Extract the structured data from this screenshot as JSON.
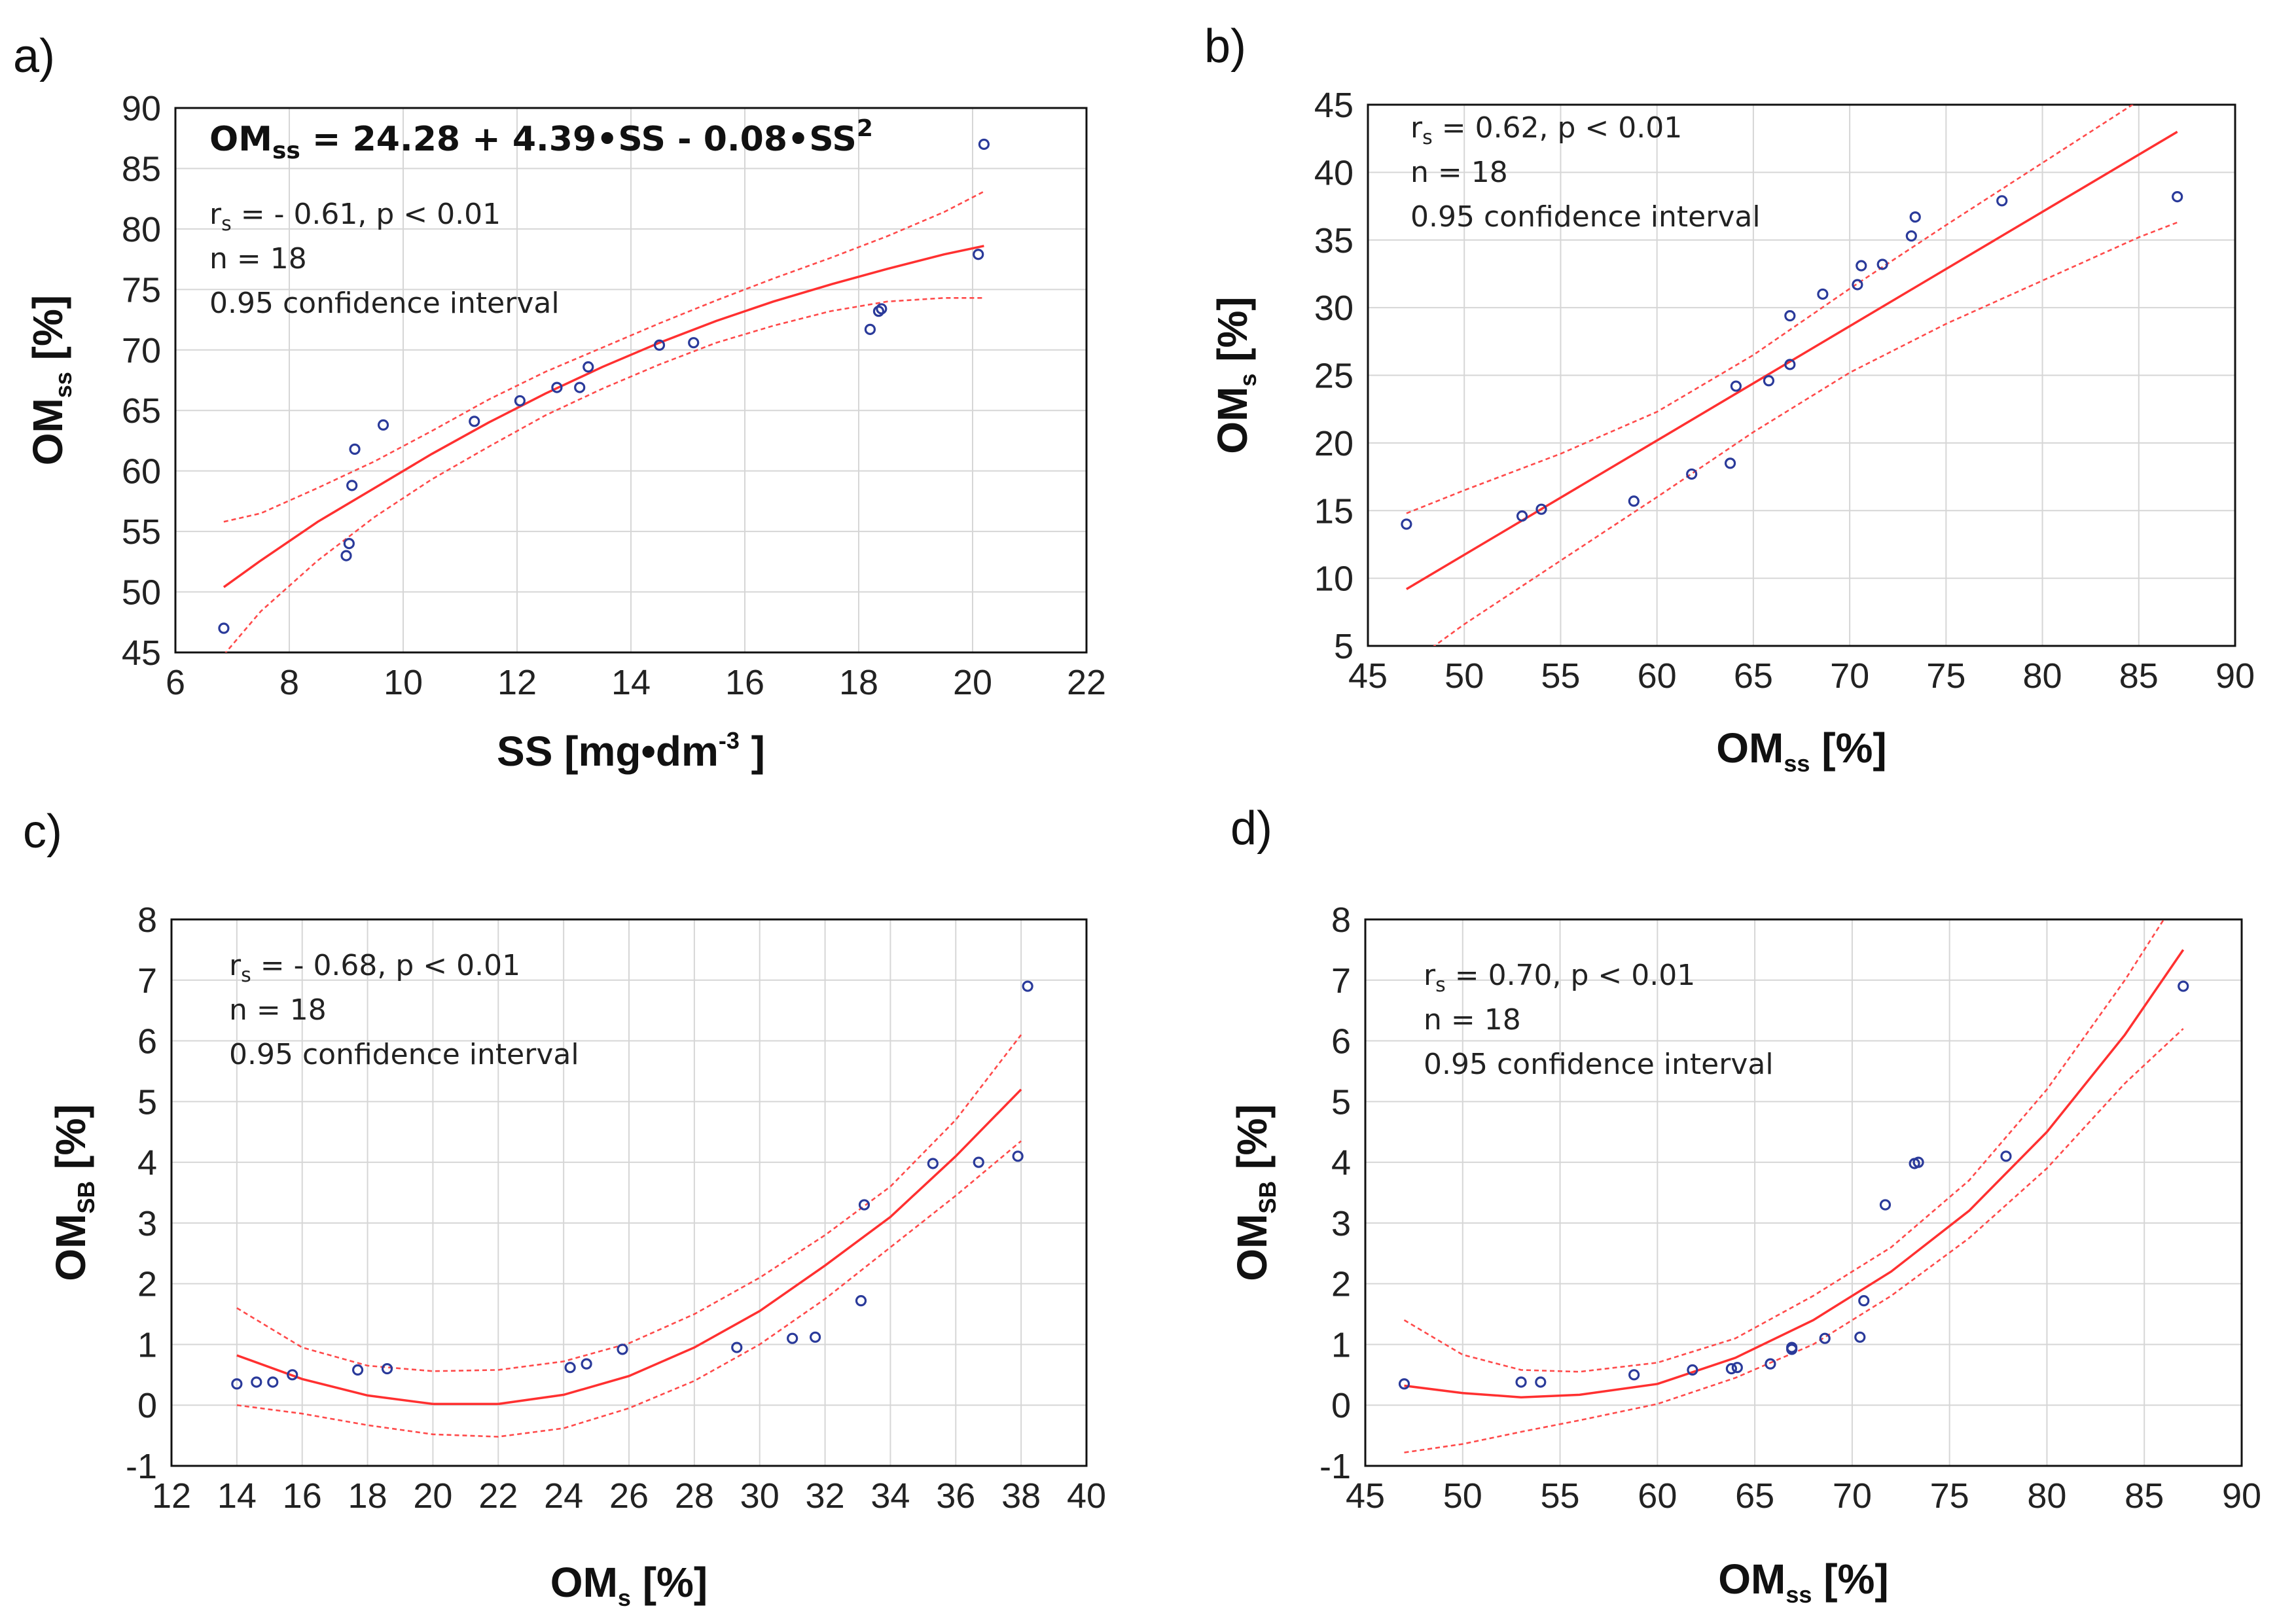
{
  "chart_data": [
    {
      "id": "a",
      "type": "scatter",
      "panel_label": "a)",
      "equation": {
        "lhs": "OM",
        "lhs_sub": "ss",
        "rhs": " = 24.28 + 4.39•SS - 0.08•SS",
        "sup": "2"
      },
      "stat": {
        "r": "r",
        "r_sub": "s",
        "text": " = - 0.61, p < 0.01"
      },
      "n_text": "n = 18",
      "ci_text": "0.95 confidence interval",
      "xlabel": {
        "main": "SS [mg•dm",
        "sup": "-3",
        "tail": " ]"
      },
      "ylabel": {
        "main": "OM",
        "sub": "ss",
        "tail": " [%]"
      },
      "xlim": [
        6,
        22
      ],
      "ylim": [
        45,
        90
      ],
      "xticks": [
        "6",
        "8",
        "10",
        "12",
        "14",
        "16",
        "18",
        "20",
        "22"
      ],
      "yticks": [
        "45",
        "50",
        "55",
        "60",
        "65",
        "70",
        "75",
        "80",
        "85",
        "90"
      ],
      "points": {
        "x": [
          6.85,
          9.0,
          9.05,
          9.1,
          9.15,
          9.65,
          11.25,
          12.05,
          12.7,
          13.1,
          13.25,
          14.5,
          15.1,
          18.2,
          18.35,
          18.4,
          20.1,
          20.2
        ],
        "y": [
          47.0,
          53.0,
          54.0,
          58.8,
          61.8,
          63.8,
          64.1,
          65.8,
          66.9,
          66.9,
          68.6,
          70.4,
          70.6,
          71.7,
          73.2,
          73.4,
          77.9,
          87.0
        ]
      },
      "fit": {
        "x": [
          6.85,
          7.5,
          8.5,
          9.5,
          10.5,
          11.5,
          12.5,
          13.5,
          14.5,
          15.5,
          16.5,
          17.5,
          18.5,
          19.5,
          20.2
        ],
        "y": [
          50.4,
          52.6,
          55.8,
          58.6,
          61.4,
          64.0,
          66.4,
          68.6,
          70.6,
          72.4,
          74.0,
          75.4,
          76.7,
          77.9,
          78.6
        ]
      },
      "ci_upper": {
        "x": [
          6.85,
          7.5,
          8.5,
          9.5,
          10.5,
          11.5,
          12.5,
          13.5,
          14.5,
          15.5,
          16.5,
          17.5,
          18.5,
          19.5,
          20.2
        ],
        "y": [
          55.8,
          56.5,
          58.6,
          60.8,
          63.3,
          65.9,
          68.2,
          70.2,
          72.2,
          74.1,
          75.9,
          77.6,
          79.4,
          81.4,
          83.1
        ]
      },
      "ci_lower": {
        "x": [
          6.85,
          7.5,
          8.5,
          9.5,
          10.5,
          11.5,
          12.5,
          13.5,
          14.5,
          15.5,
          16.5,
          17.5,
          18.5,
          19.5,
          20.2
        ],
        "y": [
          44.8,
          48.4,
          52.6,
          56.2,
          59.3,
          62.0,
          64.6,
          66.8,
          68.8,
          70.6,
          72.0,
          73.2,
          74.0,
          74.3,
          74.3
        ]
      }
    },
    {
      "id": "b",
      "type": "scatter",
      "panel_label": "b)",
      "stat": {
        "r": "r",
        "r_sub": "s",
        "text": " = 0.62, p < 0.01"
      },
      "n_text": "n = 18",
      "ci_text": "0.95 confidence interval",
      "xlabel": {
        "main": "OM",
        "sub": "ss",
        "tail": " [%]"
      },
      "ylabel": {
        "main": "OM",
        "sub": "s",
        "tail": " [%]"
      },
      "xlim": [
        45,
        90
      ],
      "ylim": [
        5,
        45
      ],
      "xticks": [
        "45",
        "50",
        "55",
        "60",
        "65",
        "70",
        "75",
        "80",
        "85",
        "90"
      ],
      "yticks": [
        "5",
        "10",
        "15",
        "20",
        "25",
        "30",
        "35",
        "40",
        "45"
      ],
      "points": {
        "x": [
          47.0,
          53.0,
          54.0,
          58.8,
          61.8,
          63.8,
          64.1,
          65.8,
          66.9,
          66.9,
          68.6,
          70.4,
          70.6,
          71.7,
          73.2,
          73.4,
          77.9,
          87.0
        ],
        "y": [
          14.0,
          14.6,
          15.1,
          15.7,
          17.7,
          18.5,
          24.2,
          24.6,
          25.8,
          29.4,
          31.0,
          31.7,
          33.1,
          33.2,
          35.3,
          36.7,
          37.9,
          38.2
        ]
      },
      "fit": {
        "x": [
          47,
          87
        ],
        "y": [
          9.2,
          43.0
        ]
      },
      "ci_upper": {
        "x": [
          47,
          50,
          55,
          60,
          65,
          70,
          75,
          80,
          85,
          87
        ],
        "y": [
          14.8,
          16.5,
          19.2,
          22.3,
          26.5,
          31.4,
          36.1,
          40.7,
          45.3,
          47.3
        ]
      },
      "ci_lower": {
        "x": [
          47,
          50,
          55,
          60,
          65,
          70,
          75,
          80,
          85,
          87
        ],
        "y": [
          3.5,
          6.6,
          11.3,
          16.0,
          20.8,
          25.2,
          28.8,
          32.0,
          35.2,
          36.3
        ]
      }
    },
    {
      "id": "c",
      "type": "scatter",
      "panel_label": "c)",
      "stat": {
        "r": "r",
        "r_sub": "s",
        "text": " = - 0.68, p < 0.01"
      },
      "n_text": "n = 18",
      "ci_text": "0.95 confidence interval",
      "xlabel": {
        "main": "OM",
        "sub": "s",
        "tail": " [%]"
      },
      "ylabel": {
        "main": "OM",
        "sub": "SB",
        "tail": " [%]"
      },
      "xlim": [
        12,
        40
      ],
      "ylim": [
        -1,
        8
      ],
      "xticks": [
        "12",
        "14",
        "16",
        "18",
        "20",
        "22",
        "24",
        "26",
        "28",
        "30",
        "32",
        "34",
        "36",
        "38",
        "40"
      ],
      "yticks": [
        "-1",
        "0",
        "1",
        "2",
        "3",
        "4",
        "5",
        "6",
        "7",
        "8"
      ],
      "points": {
        "x": [
          14.0,
          14.6,
          15.1,
          15.7,
          17.7,
          18.6,
          24.2,
          24.7,
          25.8,
          29.3,
          31.0,
          31.7,
          33.1,
          33.2,
          35.3,
          36.7,
          37.9,
          38.2
        ],
        "y": [
          0.35,
          0.38,
          0.38,
          0.5,
          0.58,
          0.6,
          0.62,
          0.68,
          0.92,
          0.95,
          1.1,
          1.12,
          1.72,
          3.3,
          3.98,
          4.0,
          4.1,
          6.9
        ]
      },
      "fit": {
        "x": [
          14,
          16,
          18,
          20,
          22,
          24,
          26,
          28,
          30,
          32,
          34,
          36,
          38
        ],
        "y": [
          0.82,
          0.43,
          0.16,
          0.02,
          0.02,
          0.17,
          0.48,
          0.95,
          1.55,
          2.3,
          3.1,
          4.1,
          5.2
        ]
      },
      "ci_upper": {
        "x": [
          14,
          16,
          18,
          20,
          22,
          24,
          26,
          28,
          30,
          32,
          34,
          36,
          38
        ],
        "y": [
          1.6,
          0.95,
          0.65,
          0.56,
          0.58,
          0.72,
          1.02,
          1.5,
          2.1,
          2.8,
          3.6,
          4.7,
          6.1
        ]
      },
      "ci_lower": {
        "x": [
          14,
          16,
          18,
          20,
          22,
          24,
          26,
          28,
          30,
          32,
          34,
          36,
          38
        ],
        "y": [
          0.0,
          -0.14,
          -0.33,
          -0.48,
          -0.52,
          -0.38,
          -0.05,
          0.4,
          1.0,
          1.75,
          2.6,
          3.45,
          4.35
        ]
      }
    },
    {
      "id": "d",
      "type": "scatter",
      "panel_label": "d)",
      "stat": {
        "r": "r",
        "r_sub": "s",
        "text": " = 0.70, p < 0.01"
      },
      "n_text": "n = 18",
      "ci_text": "0.95 confidence interval",
      "xlabel": {
        "main": "OM",
        "sub": "ss",
        "tail": " [%]"
      },
      "ylabel": {
        "main": "OM",
        "sub": "SB",
        "tail": " [%]"
      },
      "xlim": [
        45,
        90
      ],
      "ylim": [
        -1,
        8
      ],
      "xticks": [
        "45",
        "50",
        "55",
        "60",
        "65",
        "70",
        "75",
        "80",
        "85",
        "90"
      ],
      "yticks": [
        "-1",
        "0",
        "1",
        "2",
        "3",
        "4",
        "5",
        "6",
        "7",
        "8"
      ],
      "points": {
        "x": [
          47.0,
          53.0,
          54.0,
          58.8,
          61.8,
          63.8,
          64.1,
          65.8,
          66.9,
          66.9,
          68.6,
          70.4,
          70.6,
          71.7,
          73.2,
          73.4,
          77.9,
          87.0
        ],
        "y": [
          0.35,
          0.38,
          0.38,
          0.5,
          0.58,
          0.6,
          0.62,
          0.68,
          0.92,
          0.95,
          1.1,
          1.12,
          1.72,
          3.3,
          3.98,
          4.0,
          4.1,
          6.9
        ]
      },
      "fit": {
        "x": [
          47,
          50,
          53,
          56,
          60,
          64,
          68,
          72,
          76,
          80,
          84,
          87
        ],
        "y": [
          0.32,
          0.2,
          0.13,
          0.17,
          0.35,
          0.78,
          1.4,
          2.2,
          3.2,
          4.5,
          6.1,
          7.5
        ]
      },
      "ci_upper": {
        "x": [
          47,
          50,
          53,
          56,
          60,
          64,
          68,
          72,
          76,
          80,
          84,
          86
        ],
        "y": [
          1.4,
          0.83,
          0.58,
          0.55,
          0.7,
          1.1,
          1.8,
          2.6,
          3.7,
          5.2,
          7.0,
          8.0
        ]
      },
      "ci_lower": {
        "x": [
          47,
          50,
          53,
          56,
          60,
          64,
          68,
          72,
          76,
          80,
          84,
          87
        ],
        "y": [
          -0.78,
          -0.64,
          -0.44,
          -0.25,
          0.02,
          0.45,
          1.0,
          1.8,
          2.75,
          3.9,
          5.3,
          6.2
        ]
      }
    }
  ]
}
